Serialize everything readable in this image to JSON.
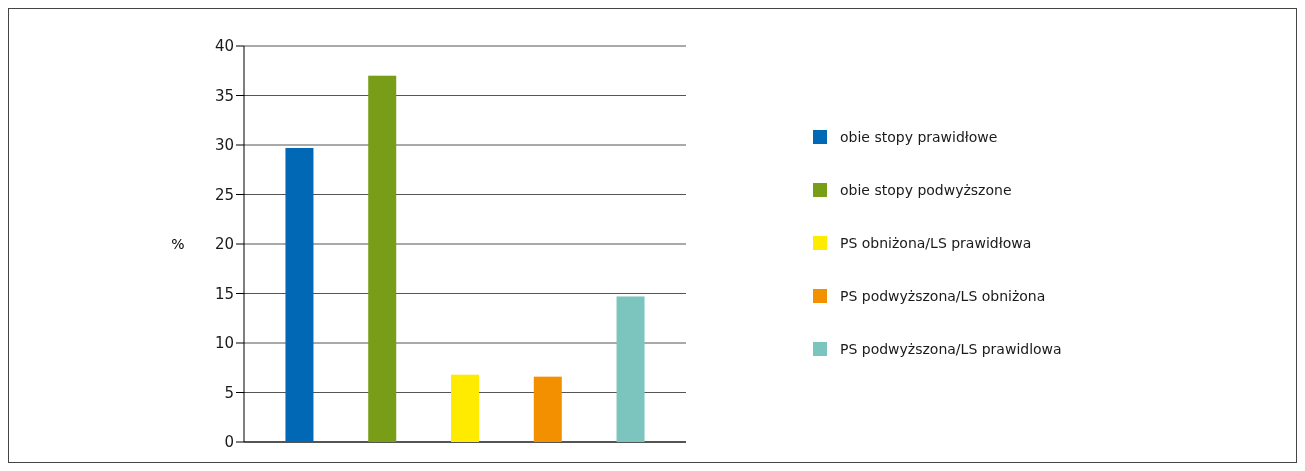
{
  "chart_data": {
    "type": "bar",
    "ylabel": "%",
    "categories": [
      null,
      null,
      null,
      null,
      null
    ],
    "series": [
      {
        "name": "obie stopy prawidłowe",
        "color": "#0068b4",
        "values": [
          29.7,
          null,
          null,
          null,
          null
        ]
      },
      {
        "name": "obie stopy podwyższone",
        "color": "#789d17",
        "values": [
          null,
          37.0,
          null,
          null,
          null
        ]
      },
      {
        "name": "PS obniżona/LS prawidłowa",
        "color": "#ffeb00",
        "values": [
          null,
          null,
          6.8,
          null,
          null
        ]
      },
      {
        "name": "PS podwyższona/LS obniżona",
        "color": "#f39000",
        "values": [
          null,
          null,
          null,
          6.6,
          null
        ]
      },
      {
        "name": "PS podwyższona/LS prawidlowa",
        "color": "#7bc5be",
        "values": [
          null,
          null,
          null,
          null,
          14.7
        ]
      }
    ],
    "ylim": [
      0,
      40
    ],
    "yticks": [
      0,
      5,
      10,
      15,
      20,
      25,
      30,
      35,
      40
    ],
    "grid": "y",
    "legend": "right"
  }
}
